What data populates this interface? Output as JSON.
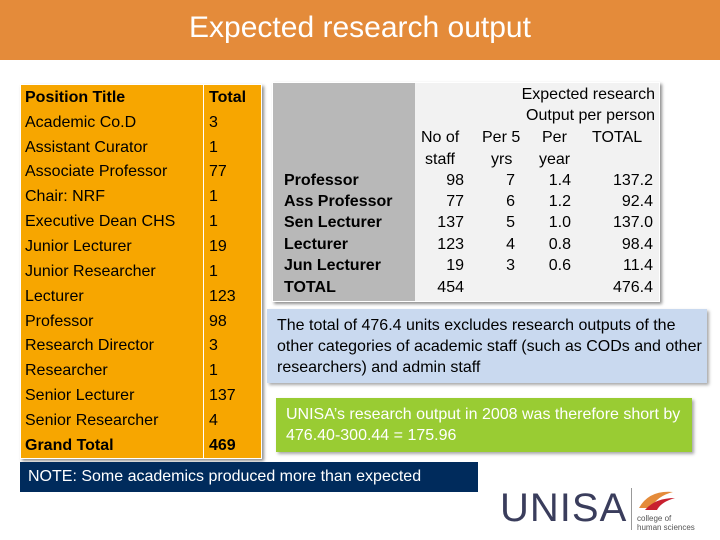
{
  "title": "Expected research output",
  "position_table": {
    "header": {
      "position": "Position Title",
      "total": "Total"
    },
    "rows": [
      {
        "position": "Academic Co.D",
        "total": "3"
      },
      {
        "position": "Assistant Curator",
        "total": "1"
      },
      {
        "position": "Associate Professor",
        "total": "77"
      },
      {
        "position": "Chair: NRF",
        "total": "1"
      },
      {
        "position": "Executive Dean CHS",
        "total": "1"
      },
      {
        "position": "Junior Lecturer",
        "total": "19"
      },
      {
        "position": "Junior Researcher",
        "total": "1"
      },
      {
        "position": "Lecturer",
        "total": "123"
      },
      {
        "position": "Professor",
        "total": "98"
      },
      {
        "position": "Research Director",
        "total": "3"
      },
      {
        "position": "Researcher",
        "total": "1"
      },
      {
        "position": "Senior Lecturer",
        "total": "137"
      },
      {
        "position": "Senior Researcher",
        "total": "4"
      }
    ],
    "grand_total": {
      "position": "Grand Total",
      "total": "469"
    }
  },
  "output_table": {
    "header_top": "Expected research",
    "header_mid": "Output per person",
    "col_headers": [
      "No of",
      "Per 5",
      "Per",
      "TOTAL"
    ],
    "col_headers2": [
      "staff",
      "yrs",
      "year"
    ],
    "rows": [
      {
        "label": "Professor",
        "staff": "98",
        "per5": "7",
        "peryear": "1.4",
        "total": "137.2"
      },
      {
        "label": "Ass Professor",
        "staff": "77",
        "per5": "6",
        "peryear": "1.2",
        "total": "92.4"
      },
      {
        "label": "Sen Lecturer",
        "staff": "137",
        "per5": "5",
        "peryear": "1.0",
        "total": "137.0"
      },
      {
        "label": "Lecturer",
        "staff": "123",
        "per5": "4",
        "peryear": "0.8",
        "total": "98.4"
      },
      {
        "label": "Jun Lecturer",
        "staff": "19",
        "per5": "3",
        "peryear": "0.6",
        "total": "11.4"
      },
      {
        "label": "TOTAL",
        "staff": "454",
        "per5": "",
        "peryear": "",
        "total": "476.4"
      }
    ]
  },
  "exclusion_note": "The total of 476.4 units excludes research outputs of the other categories of academic staff (such as CODs and other researchers) and admin staff",
  "shortfall_note": "UNISA’s research output in 2008 was therefore short by 476.40-300.44 = 175.96",
  "footer_note": "NOTE: Some academics produced more than expected",
  "logo": {
    "name": "UNISA",
    "sub": "college of human sciences"
  },
  "colors": {
    "banner": "#e48b3a",
    "table_fill": "#f7a600",
    "info_box": "#c9d9ef",
    "highlight_box": "#99cc33",
    "note_box": "#002b5c"
  }
}
